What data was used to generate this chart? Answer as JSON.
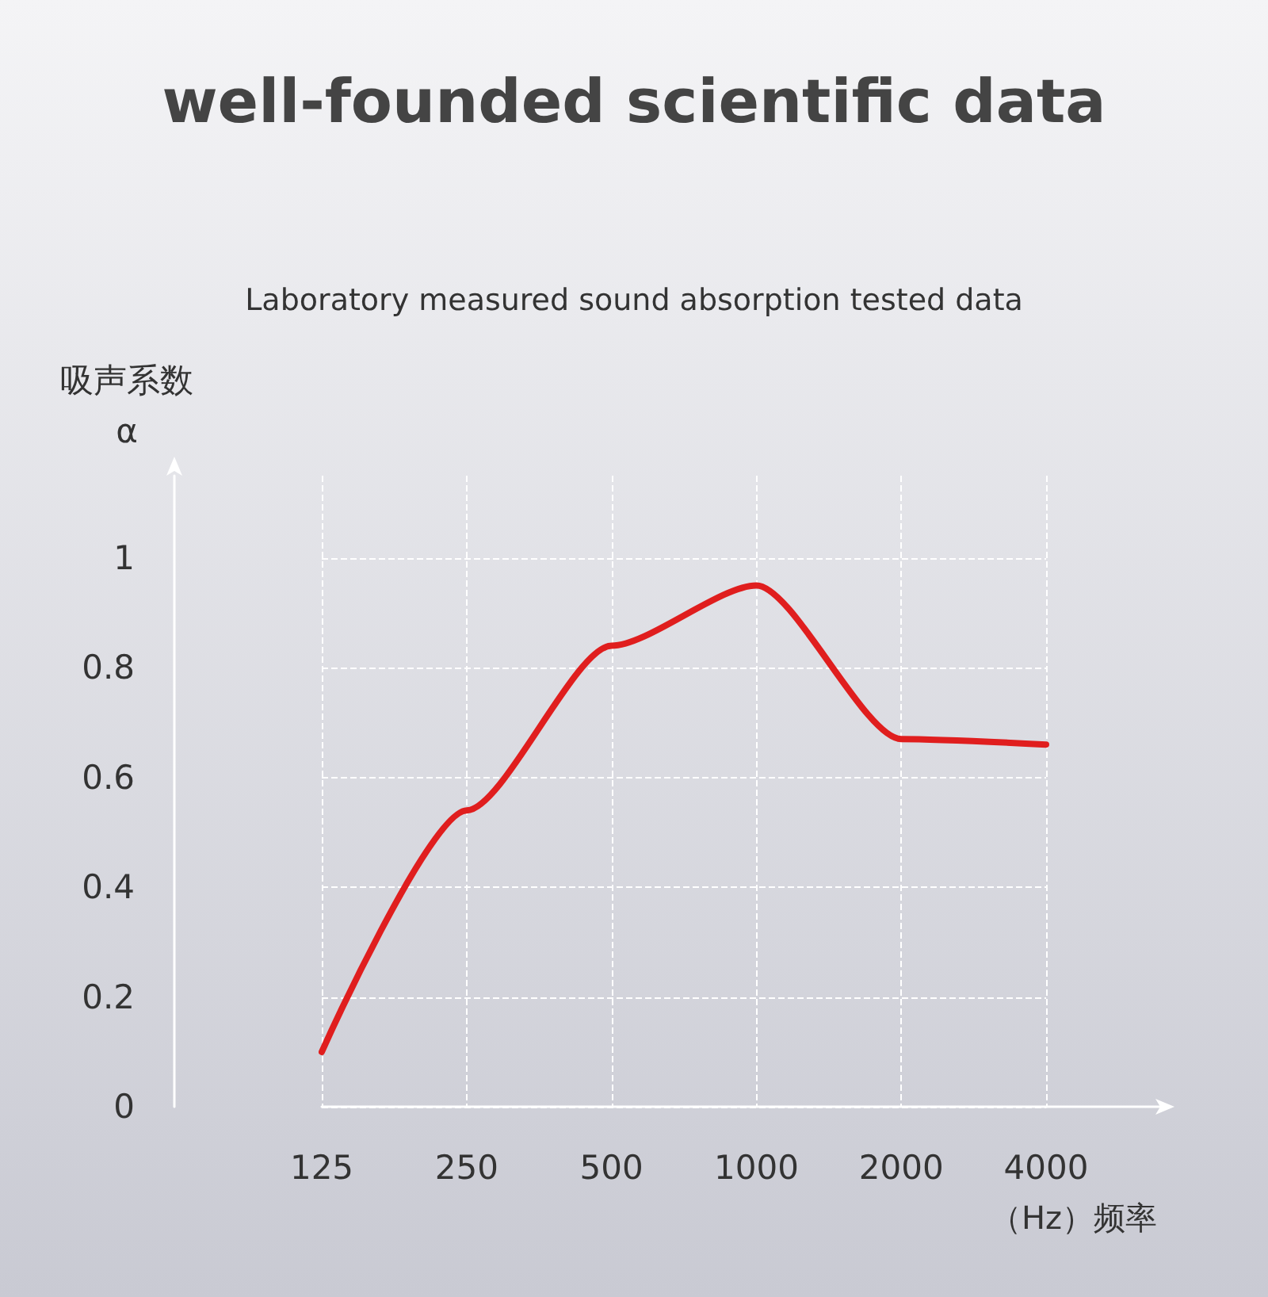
{
  "chart_data": {
    "type": "line",
    "title": "well-founded scientific data",
    "subtitle": "Laboratory measured sound absorption tested data",
    "ylabel": "吸声系数\nα",
    "xlabel": "（Hz）频率",
    "categories": [
      "125",
      "250",
      "500",
      "1000",
      "2000",
      "4000"
    ],
    "series": [
      {
        "color": "#e01e1e",
        "values": [
          0.1,
          0.54,
          0.84,
          0.95,
          0.67,
          0.66
        ]
      }
    ],
    "ylim": [
      0,
      1.15
    ],
    "yticks": [
      0,
      0.2,
      0.4,
      0.6,
      0.8,
      1
    ],
    "grid": true,
    "marker": "none",
    "line_style": "solid"
  }
}
